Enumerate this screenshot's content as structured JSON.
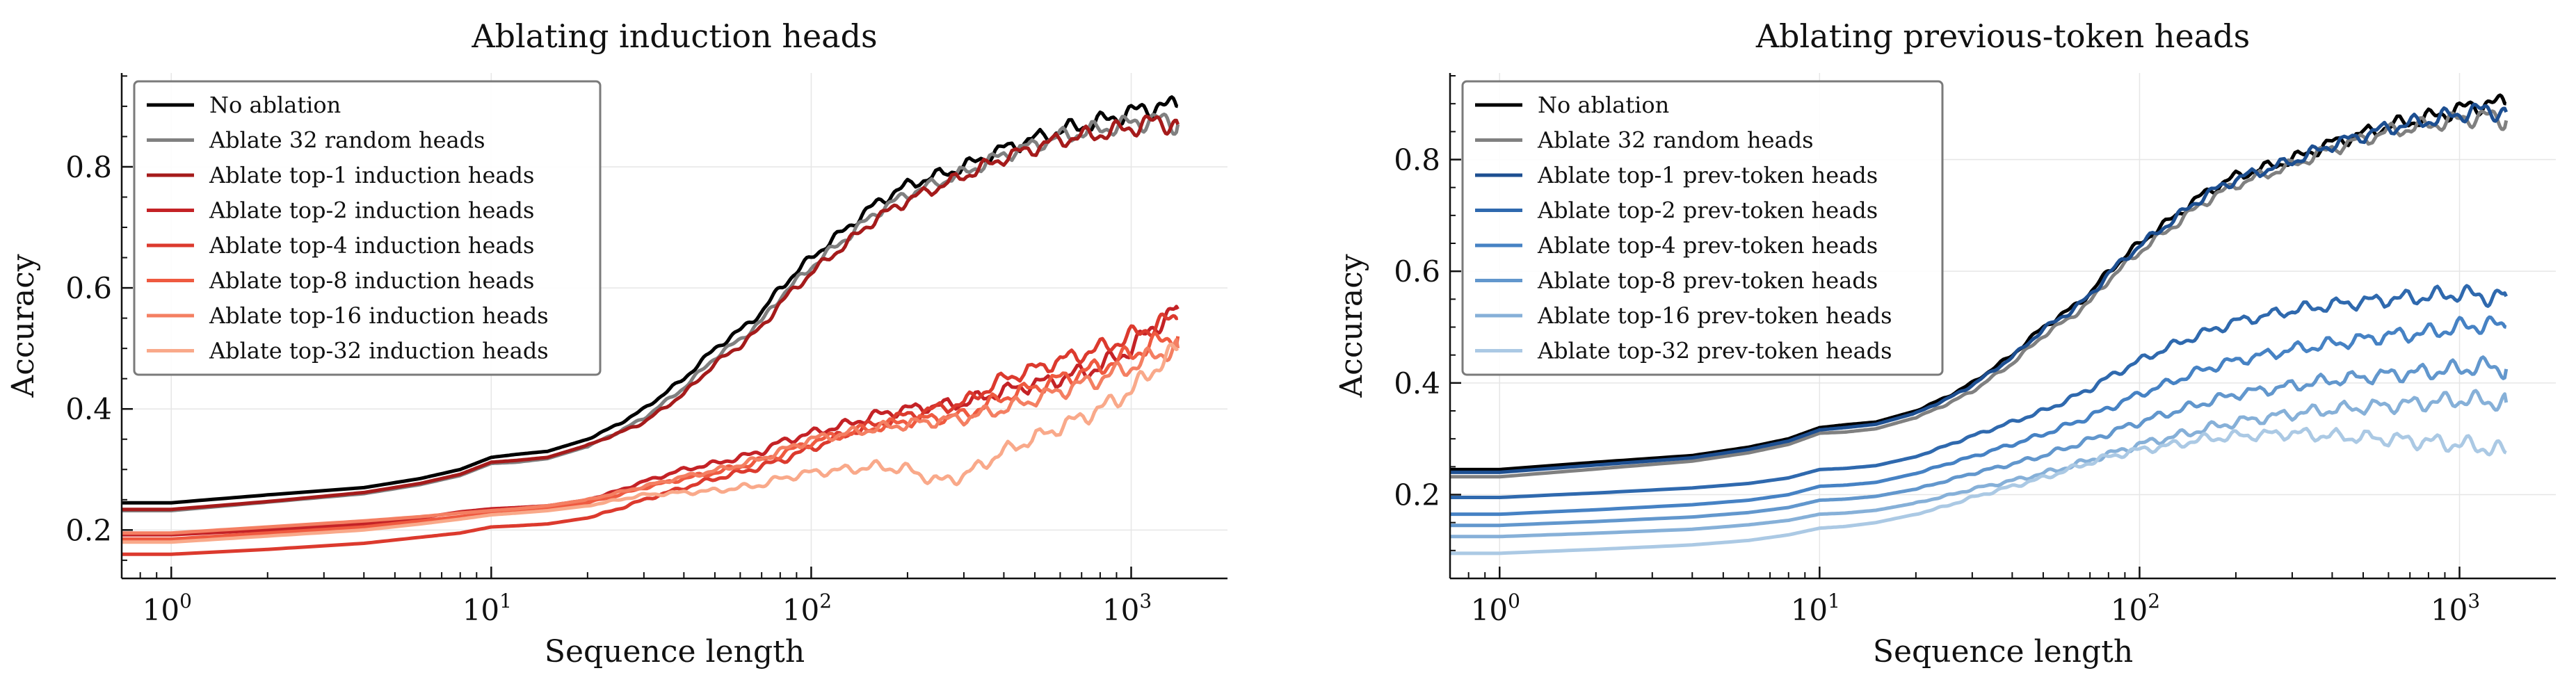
{
  "chart_data": [
    {
      "type": "line",
      "title": "Ablating induction heads",
      "xlabel": "Sequence length",
      "ylabel": "Accuracy",
      "xscale": "log",
      "xlim": [
        0.7,
        2000
      ],
      "ylim": [
        0.12,
        0.955
      ],
      "xticks": [
        1,
        10,
        100,
        1000
      ],
      "xtick_labels": [
        {
          "base": "10",
          "exp": "0"
        },
        {
          "base": "10",
          "exp": "1"
        },
        {
          "base": "10",
          "exp": "2"
        },
        {
          "base": "10",
          "exp": "3"
        }
      ],
      "yticks": [
        0.2,
        0.4,
        0.6,
        0.8
      ],
      "ytick_labels": [
        "0.2",
        "0.4",
        "0.6",
        "0.8"
      ],
      "legend_position": "upper-left",
      "series": [
        {
          "name": "No ablation",
          "color": "#000000",
          "x": [
            0.7,
            1,
            2,
            4,
            6,
            8,
            10,
            12,
            15,
            20,
            25,
            30,
            40,
            50,
            60,
            70,
            80,
            100,
            130,
            160,
            200,
            300,
            400,
            600,
            800,
            1000,
            1200,
            1400
          ],
          "y": [
            0.245,
            0.245,
            0.258,
            0.27,
            0.285,
            0.3,
            0.32,
            0.325,
            0.33,
            0.35,
            0.375,
            0.4,
            0.45,
            0.5,
            0.53,
            0.56,
            0.6,
            0.65,
            0.7,
            0.74,
            0.77,
            0.8,
            0.83,
            0.86,
            0.875,
            0.89,
            0.9,
            0.9
          ]
        },
        {
          "name": "Ablate 32 random heads",
          "color": "#808080",
          "x": [
            0.7,
            1,
            2,
            4,
            6,
            8,
            10,
            12,
            15,
            20,
            25,
            30,
            40,
            50,
            60,
            70,
            80,
            100,
            130,
            160,
            200,
            300,
            400,
            600,
            800,
            1000,
            1200,
            1400
          ],
          "y": [
            0.232,
            0.232,
            0.246,
            0.26,
            0.275,
            0.29,
            0.31,
            0.312,
            0.318,
            0.338,
            0.362,
            0.385,
            0.435,
            0.485,
            0.515,
            0.545,
            0.585,
            0.635,
            0.685,
            0.725,
            0.755,
            0.79,
            0.82,
            0.85,
            0.862,
            0.872,
            0.878,
            0.87
          ]
        },
        {
          "name": "Ablate top-1 induction heads",
          "color": "#a51b1b",
          "x": [
            0.7,
            1,
            2,
            4,
            6,
            8,
            10,
            12,
            15,
            20,
            25,
            30,
            40,
            50,
            60,
            70,
            80,
            100,
            130,
            160,
            200,
            300,
            400,
            600,
            800,
            1000,
            1200,
            1400
          ],
          "y": [
            0.234,
            0.234,
            0.247,
            0.262,
            0.277,
            0.292,
            0.312,
            0.315,
            0.32,
            0.34,
            0.36,
            0.378,
            0.425,
            0.475,
            0.505,
            0.535,
            0.575,
            0.625,
            0.675,
            0.715,
            0.745,
            0.785,
            0.815,
            0.845,
            0.855,
            0.865,
            0.875,
            0.87
          ]
        },
        {
          "name": "Ablate top-2 induction heads",
          "color": "#c42226",
          "x": [
            0.7,
            1,
            2,
            4,
            6,
            8,
            10,
            12,
            15,
            20,
            25,
            30,
            40,
            50,
            60,
            70,
            80,
            100,
            130,
            160,
            200,
            300,
            400,
            600,
            800,
            1000,
            1200,
            1400
          ],
          "y": [
            0.192,
            0.192,
            0.2,
            0.21,
            0.22,
            0.23,
            0.235,
            0.237,
            0.24,
            0.25,
            0.265,
            0.28,
            0.3,
            0.31,
            0.32,
            0.33,
            0.345,
            0.36,
            0.375,
            0.39,
            0.4,
            0.41,
            0.43,
            0.45,
            0.47,
            0.5,
            0.54,
            0.565
          ]
        },
        {
          "name": "Ablate top-4 induction heads",
          "color": "#dc3a2e",
          "x": [
            0.7,
            1,
            2,
            4,
            6,
            8,
            10,
            12,
            15,
            20,
            25,
            30,
            40,
            50,
            60,
            70,
            80,
            100,
            130,
            160,
            200,
            300,
            400,
            600,
            800,
            1000,
            1200,
            1400
          ],
          "y": [
            0.16,
            0.16,
            0.168,
            0.178,
            0.188,
            0.195,
            0.205,
            0.207,
            0.21,
            0.22,
            0.235,
            0.25,
            0.27,
            0.285,
            0.295,
            0.305,
            0.315,
            0.335,
            0.36,
            0.375,
            0.39,
            0.41,
            0.45,
            0.48,
            0.5,
            0.52,
            0.54,
            0.55
          ]
        },
        {
          "name": "Ablate top-8 induction heads",
          "color": "#ef5a40",
          "x": [
            0.7,
            1,
            2,
            4,
            6,
            8,
            10,
            12,
            15,
            20,
            25,
            30,
            40,
            50,
            60,
            70,
            80,
            100,
            130,
            160,
            200,
            300,
            400,
            600,
            800,
            1000,
            1200,
            1400
          ],
          "y": [
            0.185,
            0.185,
            0.195,
            0.205,
            0.215,
            0.222,
            0.228,
            0.232,
            0.237,
            0.245,
            0.258,
            0.27,
            0.285,
            0.295,
            0.305,
            0.315,
            0.325,
            0.345,
            0.36,
            0.37,
            0.38,
            0.39,
            0.42,
            0.45,
            0.47,
            0.49,
            0.51,
            0.52
          ]
        },
        {
          "name": "Ablate top-16 induction heads",
          "color": "#f47f62",
          "x": [
            0.7,
            1,
            2,
            4,
            6,
            8,
            10,
            12,
            15,
            20,
            25,
            30,
            40,
            50,
            60,
            70,
            80,
            100,
            130,
            160,
            200,
            300,
            400,
            600,
            800,
            1000,
            1200,
            1400
          ],
          "y": [
            0.195,
            0.195,
            0.205,
            0.215,
            0.222,
            0.228,
            0.232,
            0.235,
            0.24,
            0.25,
            0.262,
            0.272,
            0.288,
            0.298,
            0.308,
            0.318,
            0.33,
            0.35,
            0.36,
            0.368,
            0.375,
            0.385,
            0.4,
            0.43,
            0.45,
            0.47,
            0.49,
            0.5
          ]
        },
        {
          "name": "Ablate top-32 induction heads",
          "color": "#f9a98a",
          "x": [
            0.7,
            1,
            2,
            4,
            6,
            8,
            10,
            12,
            15,
            20,
            25,
            30,
            40,
            50,
            60,
            70,
            80,
            100,
            130,
            160,
            200,
            250,
            300,
            400,
            600,
            800,
            1000,
            1200,
            1400
          ],
          "y": [
            0.18,
            0.18,
            0.19,
            0.2,
            0.21,
            0.218,
            0.225,
            0.228,
            0.232,
            0.24,
            0.25,
            0.258,
            0.262,
            0.265,
            0.27,
            0.275,
            0.285,
            0.295,
            0.3,
            0.305,
            0.3,
            0.28,
            0.29,
            0.33,
            0.37,
            0.4,
            0.43,
            0.47,
            0.5
          ]
        }
      ]
    },
    {
      "type": "line",
      "title": "Ablating previous-token heads",
      "xlabel": "Sequence length",
      "ylabel": "Accuracy",
      "xscale": "log",
      "xlim": [
        0.7,
        2000
      ],
      "ylim": [
        0.05,
        0.955
      ],
      "xticks": [
        1,
        10,
        100,
        1000
      ],
      "xtick_labels": [
        {
          "base": "10",
          "exp": "0"
        },
        {
          "base": "10",
          "exp": "1"
        },
        {
          "base": "10",
          "exp": "2"
        },
        {
          "base": "10",
          "exp": "3"
        }
      ],
      "yticks": [
        0.2,
        0.4,
        0.6,
        0.8
      ],
      "ytick_labels": [
        "0.2",
        "0.4",
        "0.6",
        "0.8"
      ],
      "legend_position": "upper-left",
      "series": [
        {
          "name": "No ablation",
          "color": "#000000",
          "x": [
            0.7,
            1,
            2,
            4,
            6,
            8,
            10,
            12,
            15,
            20,
            25,
            30,
            40,
            50,
            60,
            70,
            80,
            100,
            130,
            160,
            200,
            300,
            400,
            600,
            800,
            1000,
            1200,
            1400
          ],
          "y": [
            0.245,
            0.245,
            0.258,
            0.27,
            0.285,
            0.3,
            0.32,
            0.325,
            0.33,
            0.35,
            0.375,
            0.4,
            0.45,
            0.5,
            0.53,
            0.56,
            0.6,
            0.65,
            0.7,
            0.74,
            0.77,
            0.8,
            0.83,
            0.86,
            0.875,
            0.89,
            0.9,
            0.9
          ]
        },
        {
          "name": "Ablate 32 random heads",
          "color": "#808080",
          "x": [
            0.7,
            1,
            2,
            4,
            6,
            8,
            10,
            12,
            15,
            20,
            25,
            30,
            40,
            50,
            60,
            70,
            80,
            100,
            130,
            160,
            200,
            300,
            400,
            600,
            800,
            1000,
            1200,
            1400
          ],
          "y": [
            0.232,
            0.232,
            0.246,
            0.26,
            0.275,
            0.29,
            0.31,
            0.312,
            0.318,
            0.338,
            0.362,
            0.385,
            0.435,
            0.485,
            0.515,
            0.545,
            0.585,
            0.635,
            0.685,
            0.725,
            0.755,
            0.79,
            0.82,
            0.85,
            0.862,
            0.872,
            0.878,
            0.87
          ]
        },
        {
          "name": "Ablate top-1 prev-token heads",
          "color": "#1d4f91",
          "x": [
            0.7,
            1,
            2,
            4,
            6,
            8,
            10,
            12,
            15,
            20,
            25,
            30,
            40,
            50,
            60,
            70,
            80,
            100,
            130,
            160,
            200,
            300,
            400,
            600,
            800,
            1000,
            1200,
            1400
          ],
          "y": [
            0.24,
            0.24,
            0.253,
            0.266,
            0.281,
            0.296,
            0.316,
            0.32,
            0.326,
            0.346,
            0.371,
            0.396,
            0.446,
            0.496,
            0.526,
            0.556,
            0.596,
            0.646,
            0.696,
            0.736,
            0.765,
            0.797,
            0.827,
            0.857,
            0.87,
            0.882,
            0.889,
            0.885
          ]
        },
        {
          "name": "Ablate top-2 prev-token heads",
          "color": "#2f69ae",
          "x": [
            0.7,
            1,
            2,
            4,
            6,
            8,
            10,
            12,
            15,
            20,
            25,
            30,
            40,
            50,
            60,
            70,
            80,
            100,
            130,
            160,
            200,
            300,
            400,
            600,
            800,
            1000,
            1200,
            1400
          ],
          "y": [
            0.195,
            0.195,
            0.203,
            0.212,
            0.22,
            0.23,
            0.245,
            0.247,
            0.252,
            0.268,
            0.288,
            0.305,
            0.33,
            0.35,
            0.37,
            0.39,
            0.41,
            0.44,
            0.47,
            0.49,
            0.51,
            0.53,
            0.54,
            0.55,
            0.555,
            0.56,
            0.555,
            0.555
          ]
        },
        {
          "name": "Ablate top-4 prev-token heads",
          "color": "#4682c4",
          "x": [
            0.7,
            1,
            2,
            4,
            6,
            8,
            10,
            12,
            15,
            20,
            25,
            30,
            40,
            50,
            60,
            70,
            80,
            100,
            130,
            160,
            200,
            300,
            400,
            600,
            800,
            1000,
            1200,
            1400
          ],
          "y": [
            0.165,
            0.165,
            0.173,
            0.182,
            0.19,
            0.2,
            0.215,
            0.217,
            0.222,
            0.238,
            0.255,
            0.268,
            0.29,
            0.308,
            0.325,
            0.34,
            0.355,
            0.38,
            0.405,
            0.425,
            0.44,
            0.46,
            0.47,
            0.485,
            0.49,
            0.5,
            0.505,
            0.5
          ]
        },
        {
          "name": "Ablate top-8 prev-token heads",
          "color": "#6297cd",
          "x": [
            0.7,
            1,
            2,
            4,
            6,
            8,
            10,
            12,
            15,
            20,
            25,
            30,
            40,
            50,
            60,
            70,
            80,
            100,
            130,
            160,
            200,
            300,
            400,
            600,
            800,
            1000,
            1200,
            1400
          ],
          "y": [
            0.145,
            0.145,
            0.152,
            0.16,
            0.168,
            0.177,
            0.19,
            0.192,
            0.197,
            0.21,
            0.225,
            0.238,
            0.255,
            0.27,
            0.285,
            0.298,
            0.31,
            0.33,
            0.35,
            0.365,
            0.38,
            0.395,
            0.405,
            0.415,
            0.42,
            0.425,
            0.43,
            0.425
          ]
        },
        {
          "name": "Ablate top-16 prev-token heads",
          "color": "#86b0d8",
          "x": [
            0.7,
            1,
            2,
            4,
            6,
            8,
            10,
            12,
            15,
            20,
            25,
            30,
            40,
            50,
            60,
            70,
            80,
            100,
            130,
            160,
            200,
            300,
            400,
            600,
            800,
            1000,
            1200,
            1400
          ],
          "y": [
            0.125,
            0.125,
            0.131,
            0.138,
            0.146,
            0.154,
            0.165,
            0.167,
            0.172,
            0.185,
            0.198,
            0.21,
            0.225,
            0.238,
            0.25,
            0.262,
            0.272,
            0.29,
            0.305,
            0.318,
            0.33,
            0.345,
            0.352,
            0.36,
            0.365,
            0.37,
            0.368,
            0.365
          ]
        },
        {
          "name": "Ablate top-32 prev-token heads",
          "color": "#abc9e4",
          "x": [
            0.7,
            1,
            2,
            4,
            6,
            8,
            10,
            12,
            15,
            20,
            25,
            30,
            40,
            50,
            60,
            70,
            80,
            100,
            130,
            160,
            200,
            300,
            400,
            600,
            800,
            1000,
            1200,
            1400
          ],
          "y": [
            0.095,
            0.095,
            0.102,
            0.11,
            0.118,
            0.128,
            0.14,
            0.143,
            0.15,
            0.165,
            0.18,
            0.195,
            0.215,
            0.23,
            0.245,
            0.258,
            0.268,
            0.28,
            0.29,
            0.3,
            0.305,
            0.31,
            0.305,
            0.3,
            0.295,
            0.29,
            0.285,
            0.275
          ]
        }
      ]
    }
  ]
}
